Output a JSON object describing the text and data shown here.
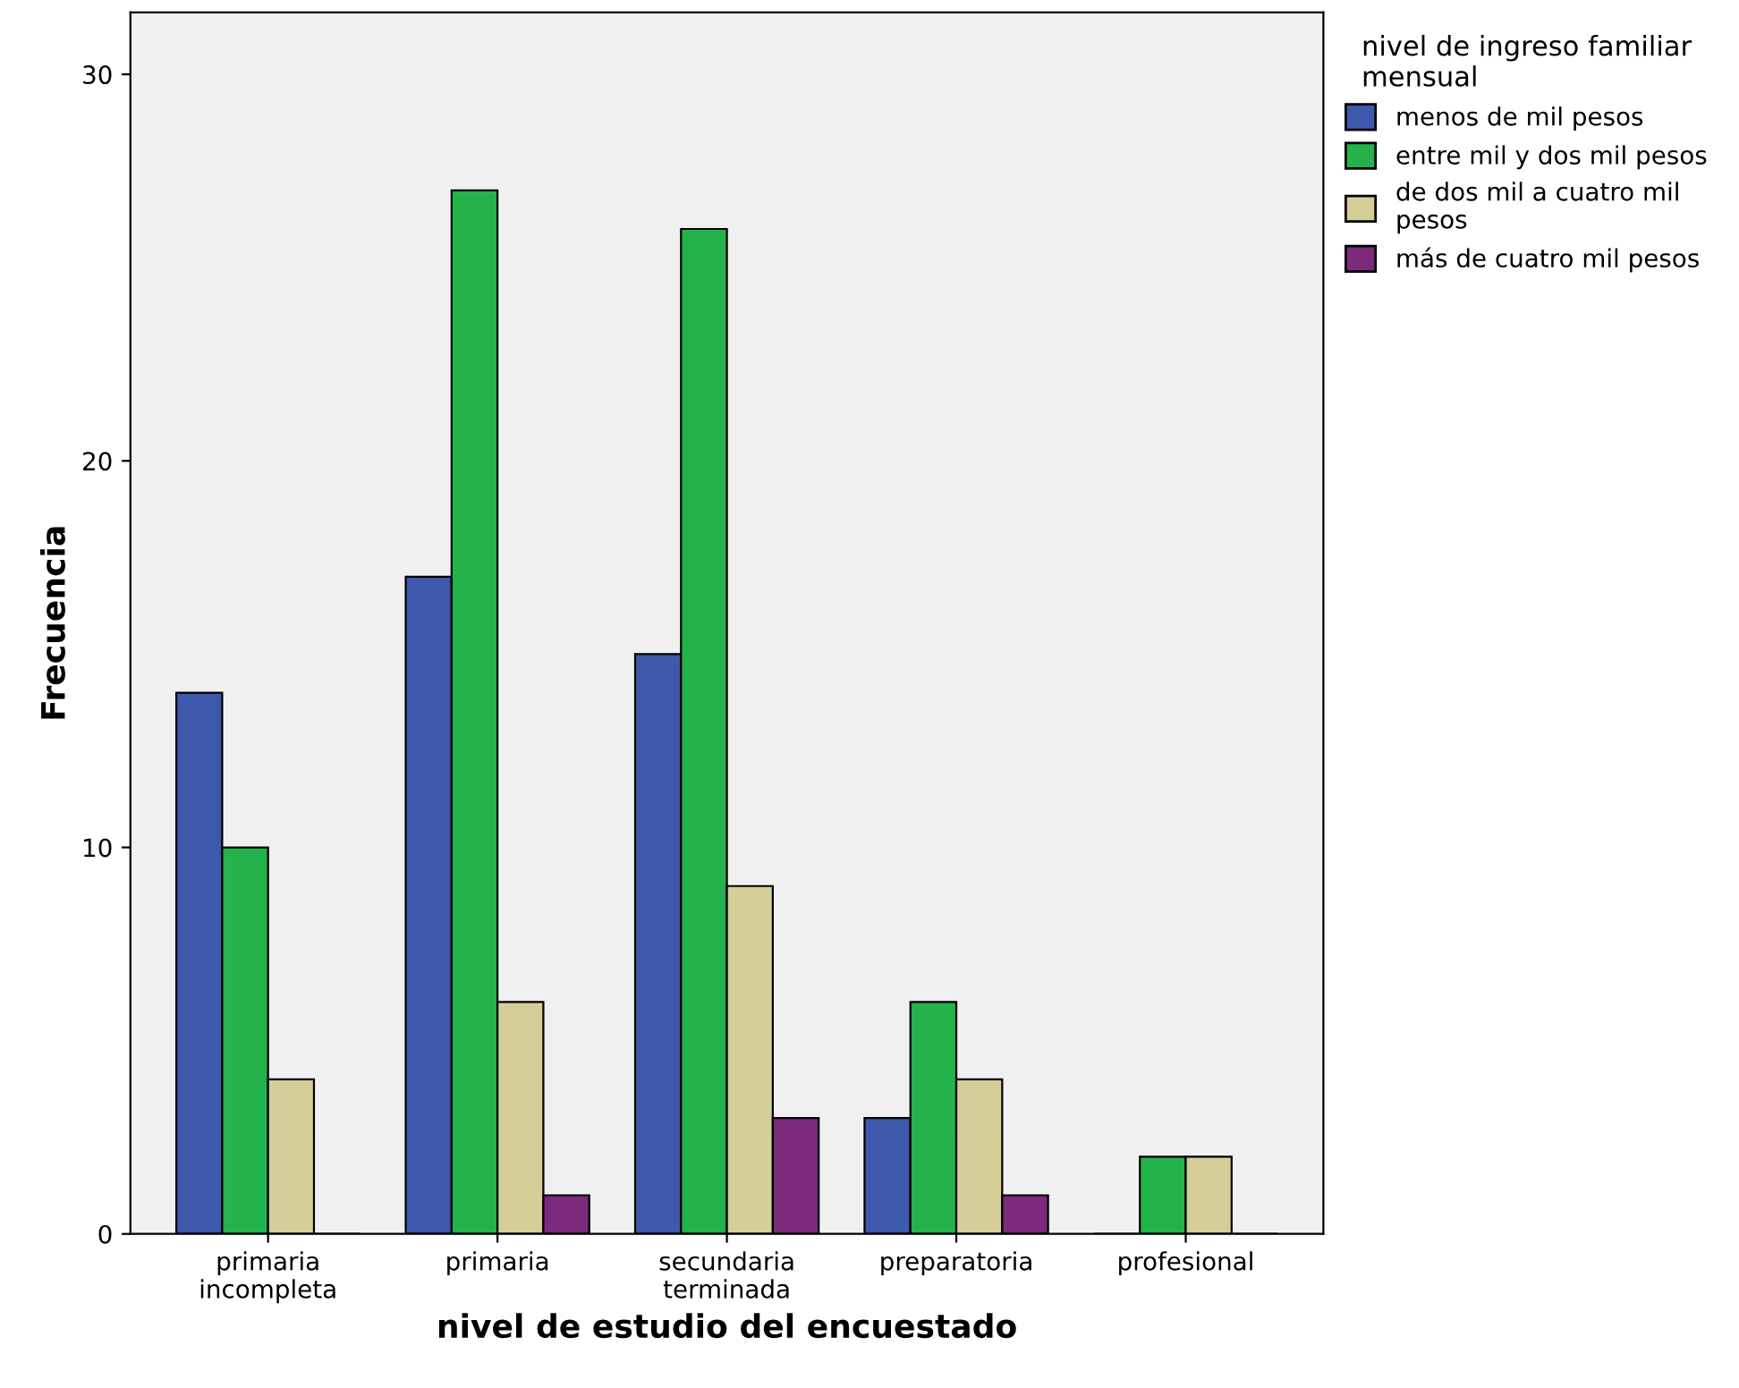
{
  "chart_data": {
    "type": "bar",
    "xlabel": "nivel de estudio del encuestado",
    "ylabel": "Frecuencia",
    "legend_title": "nivel de ingreso familiar\nmensual",
    "categories": [
      "primaria\nincompleta",
      "primaria",
      "secundaria\nterminada",
      "preparatoria",
      "profesional"
    ],
    "series": [
      {
        "name": "menos de mil pesos",
        "color": "#3e58ac",
        "values": [
          14,
          17,
          15,
          3,
          0
        ]
      },
      {
        "name": "entre mil y dos mil pesos",
        "color": "#23b24b",
        "values": [
          10,
          27,
          26,
          6,
          2
        ]
      },
      {
        "name": "de dos mil a cuatro mil\npesos",
        "color": "#d4cf98",
        "values": [
          4,
          6,
          9,
          4,
          2
        ]
      },
      {
        "name": "más de cuatro mil pesos",
        "color": "#7b2a7c",
        "values": [
          0,
          1,
          3,
          1,
          0
        ]
      }
    ],
    "ylim": [
      0,
      31.6
    ],
    "yticks": [
      0,
      10,
      20,
      30
    ],
    "grid": false,
    "legend": "right"
  }
}
